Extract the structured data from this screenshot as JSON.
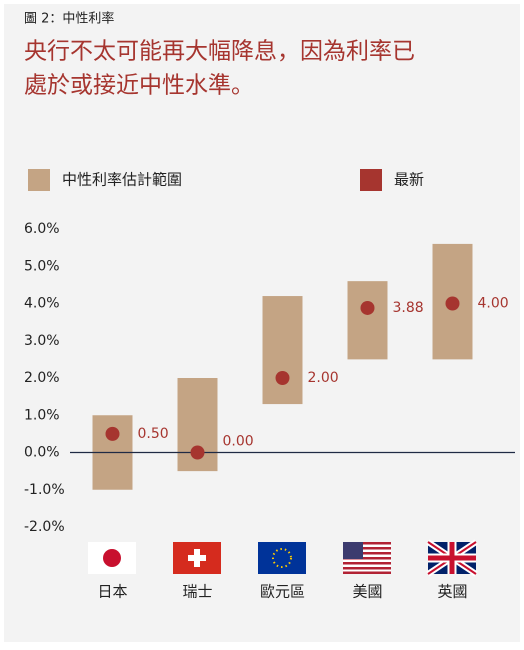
{
  "chart_data": {
    "type": "range-dot",
    "subtitle": "圖 2：中性利率",
    "title_lines": [
      "央行不太可能再大幅降息，因為利率已",
      "處於或接近中性水準。"
    ],
    "categories": [
      "日本",
      "瑞士",
      "歐元區",
      "美國",
      "英國"
    ],
    "series": [
      {
        "name": "中性利率估計範圍",
        "color": "#c4a484",
        "low": [
          -1.0,
          -0.5,
          1.3,
          2.5,
          2.5
        ],
        "high": [
          1.0,
          2.0,
          4.2,
          4.6,
          5.6
        ]
      },
      {
        "name": "最新",
        "color": "#a6352f",
        "values": [
          0.5,
          0.0,
          2.0,
          3.88,
          4.0
        ],
        "value_labels": [
          "0.50",
          "0.00",
          "2.00",
          "3.88",
          "4.00"
        ]
      }
    ],
    "ylim": [
      -2,
      6
    ],
    "yticks": [
      {
        "value": -2,
        "label": "-2.0%"
      },
      {
        "value": -1,
        "label": "-1.0%"
      },
      {
        "value": 0,
        "label": "0.0%"
      },
      {
        "value": 1,
        "label": "1.0%"
      },
      {
        "value": 2,
        "label": "2.0%"
      },
      {
        "value": 3,
        "label": "3.0%"
      },
      {
        "value": 4,
        "label": "4.0%"
      },
      {
        "value": 5,
        "label": "5.0%"
      },
      {
        "value": 6,
        "label": "6.0%"
      }
    ]
  }
}
